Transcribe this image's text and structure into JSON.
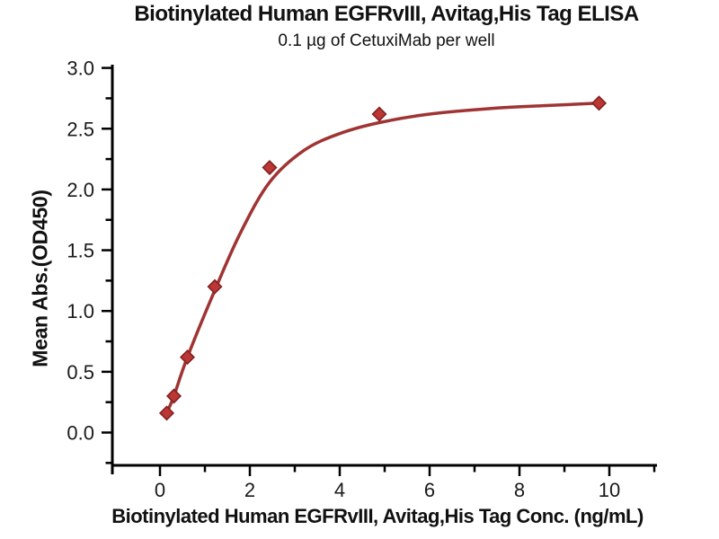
{
  "chart_data": {
    "type": "scatter",
    "title": "Biotinylated Human EGFRvIII, Avitag,His Tag ELISA",
    "subtitle": "0.1 µg of CetuxiMab per well",
    "xlabel": "Biotinylated Human EGFRvIII, Avitag,His Tag Conc. (ng/mL)",
    "ylabel": "Mean Abs.(OD450)",
    "x": [
      0.15,
      0.31,
      0.61,
      1.22,
      2.44,
      4.88,
      9.77
    ],
    "y": [
      0.16,
      0.3,
      0.62,
      1.2,
      2.18,
      2.62,
      2.71
    ],
    "marker": "diamond",
    "curve_points": [
      [
        0.15,
        0.16
      ],
      [
        0.31,
        0.3
      ],
      [
        0.61,
        0.62
      ],
      [
        1.22,
        1.17
      ],
      [
        1.8,
        1.65
      ],
      [
        2.44,
        2.06
      ],
      [
        3.2,
        2.32
      ],
      [
        4.0,
        2.46
      ],
      [
        4.88,
        2.55
      ],
      [
        6.0,
        2.62
      ],
      [
        7.5,
        2.67
      ],
      [
        8.6,
        2.69
      ],
      [
        9.77,
        2.71
      ]
    ],
    "xlim": [
      -1.06,
      11.06
    ],
    "ylim": [
      0.0,
      3.0
    ],
    "x_major_ticks": [
      0,
      2,
      4,
      6,
      8,
      10
    ],
    "x_tick_labels": [
      "0",
      "2",
      "4",
      "6",
      "8",
      "10"
    ],
    "x_minor_ticks": [
      1,
      3,
      5,
      7,
      9,
      11
    ],
    "y_major_ticks": [
      0.0,
      0.5,
      1.0,
      1.5,
      2.0,
      2.5,
      3.0
    ],
    "y_tick_labels": [
      "0.0",
      "0.5",
      "1.0",
      "1.5",
      "2.0",
      "2.5",
      "3.0"
    ],
    "y_minor_ticks": [
      -0.25,
      0.25,
      0.75,
      1.25,
      1.75,
      2.25,
      2.75
    ],
    "grid": "off",
    "legend": "none",
    "colors": {
      "background": "#ffffff",
      "text": "#111111",
      "axis": "#000000",
      "line": "#a03434",
      "marker_fill": "#bb3634",
      "marker_edge": "#822120"
    }
  }
}
